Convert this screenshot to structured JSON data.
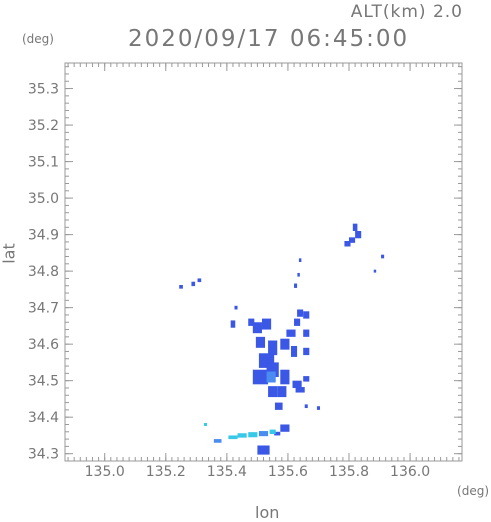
{
  "header": {
    "altitude_label": "ALT(km) 2.0",
    "timestamp": "2020/09/17 06:45:00"
  },
  "chart_data": {
    "type": "heatmap",
    "title": "2020/09/17 06:45:00",
    "subtitle": "ALT(km) 2.0",
    "xlabel": "lon",
    "ylabel": "lat",
    "x_unit": "(deg)",
    "y_unit": "(deg)",
    "xlim": [
      134.87,
      136.17
    ],
    "ylim": [
      34.28,
      35.37
    ],
    "x_ticks": [
      "135.0",
      "135.2",
      "135.4",
      "135.6",
      "135.8",
      "136.0"
    ],
    "y_ticks": [
      "34.3",
      "34.4",
      "34.5",
      "34.6",
      "34.7",
      "34.8",
      "34.9",
      "35.0",
      "35.1",
      "35.2",
      "35.3"
    ],
    "grid": false,
    "colors": {
      "blue": "#3a57e6",
      "light_blue": "#4a8cf0",
      "cyan": "#38c8e8",
      "axis": "#999999"
    },
    "cells": [
      {
        "lon": 135.82,
        "lat": 34.92,
        "w": 0.015,
        "h": 0.02,
        "c": "blue"
      },
      {
        "lon": 135.83,
        "lat": 34.9,
        "w": 0.02,
        "h": 0.02,
        "c": "blue"
      },
      {
        "lon": 135.81,
        "lat": 34.885,
        "w": 0.02,
        "h": 0.015,
        "c": "blue"
      },
      {
        "lon": 135.795,
        "lat": 34.875,
        "w": 0.02,
        "h": 0.015,
        "c": "blue"
      },
      {
        "lon": 135.91,
        "lat": 34.84,
        "w": 0.01,
        "h": 0.01,
        "c": "blue"
      },
      {
        "lon": 135.885,
        "lat": 34.8,
        "w": 0.008,
        "h": 0.008,
        "c": "blue"
      },
      {
        "lon": 135.64,
        "lat": 34.83,
        "w": 0.008,
        "h": 0.01,
        "c": "blue"
      },
      {
        "lon": 135.635,
        "lat": 34.79,
        "w": 0.008,
        "h": 0.01,
        "c": "blue"
      },
      {
        "lon": 135.625,
        "lat": 34.76,
        "w": 0.01,
        "h": 0.012,
        "c": "blue"
      },
      {
        "lon": 135.29,
        "lat": 34.765,
        "w": 0.012,
        "h": 0.012,
        "c": "blue"
      },
      {
        "lon": 135.31,
        "lat": 34.775,
        "w": 0.012,
        "h": 0.01,
        "c": "blue"
      },
      {
        "lon": 135.25,
        "lat": 34.757,
        "w": 0.012,
        "h": 0.01,
        "c": "blue"
      },
      {
        "lon": 135.43,
        "lat": 34.7,
        "w": 0.01,
        "h": 0.01,
        "c": "blue"
      },
      {
        "lon": 135.42,
        "lat": 34.655,
        "w": 0.015,
        "h": 0.02,
        "c": "blue"
      },
      {
        "lon": 135.48,
        "lat": 34.66,
        "w": 0.02,
        "h": 0.02,
        "c": "blue"
      },
      {
        "lon": 135.5,
        "lat": 34.645,
        "w": 0.03,
        "h": 0.03,
        "c": "blue"
      },
      {
        "lon": 135.53,
        "lat": 34.655,
        "w": 0.03,
        "h": 0.03,
        "c": "blue"
      },
      {
        "lon": 135.51,
        "lat": 34.605,
        "w": 0.03,
        "h": 0.03,
        "c": "blue"
      },
      {
        "lon": 135.55,
        "lat": 34.59,
        "w": 0.03,
        "h": 0.04,
        "c": "blue"
      },
      {
        "lon": 135.59,
        "lat": 34.6,
        "w": 0.03,
        "h": 0.03,
        "c": "blue"
      },
      {
        "lon": 135.62,
        "lat": 34.58,
        "w": 0.02,
        "h": 0.03,
        "c": "blue"
      },
      {
        "lon": 135.61,
        "lat": 34.63,
        "w": 0.03,
        "h": 0.02,
        "c": "blue"
      },
      {
        "lon": 135.63,
        "lat": 34.66,
        "w": 0.02,
        "h": 0.02,
        "c": "blue"
      },
      {
        "lon": 135.64,
        "lat": 34.685,
        "w": 0.02,
        "h": 0.02,
        "c": "blue"
      },
      {
        "lon": 135.66,
        "lat": 34.68,
        "w": 0.02,
        "h": 0.02,
        "c": "blue"
      },
      {
        "lon": 135.66,
        "lat": 34.63,
        "w": 0.02,
        "h": 0.02,
        "c": "blue"
      },
      {
        "lon": 135.66,
        "lat": 34.58,
        "w": 0.02,
        "h": 0.02,
        "c": "blue"
      },
      {
        "lon": 135.53,
        "lat": 34.555,
        "w": 0.05,
        "h": 0.04,
        "c": "blue"
      },
      {
        "lon": 135.55,
        "lat": 34.53,
        "w": 0.04,
        "h": 0.04,
        "c": "blue"
      },
      {
        "lon": 135.51,
        "lat": 34.51,
        "w": 0.05,
        "h": 0.04,
        "c": "blue"
      },
      {
        "lon": 135.545,
        "lat": 34.51,
        "w": 0.03,
        "h": 0.03,
        "c": "light_blue"
      },
      {
        "lon": 135.59,
        "lat": 34.51,
        "w": 0.03,
        "h": 0.04,
        "c": "blue"
      },
      {
        "lon": 135.58,
        "lat": 34.47,
        "w": 0.03,
        "h": 0.03,
        "c": "blue"
      },
      {
        "lon": 135.55,
        "lat": 34.47,
        "w": 0.03,
        "h": 0.03,
        "c": "blue"
      },
      {
        "lon": 135.63,
        "lat": 34.49,
        "w": 0.03,
        "h": 0.02,
        "c": "blue"
      },
      {
        "lon": 135.66,
        "lat": 34.505,
        "w": 0.02,
        "h": 0.015,
        "c": "blue"
      },
      {
        "lon": 135.64,
        "lat": 34.475,
        "w": 0.03,
        "h": 0.015,
        "c": "blue"
      },
      {
        "lon": 135.57,
        "lat": 34.43,
        "w": 0.025,
        "h": 0.02,
        "c": "blue"
      },
      {
        "lon": 135.66,
        "lat": 34.43,
        "w": 0.01,
        "h": 0.01,
        "c": "blue"
      },
      {
        "lon": 135.7,
        "lat": 34.425,
        "w": 0.01,
        "h": 0.01,
        "c": "blue"
      },
      {
        "lon": 135.59,
        "lat": 34.37,
        "w": 0.03,
        "h": 0.02,
        "c": "blue"
      },
      {
        "lon": 135.565,
        "lat": 34.355,
        "w": 0.02,
        "h": 0.01,
        "c": "blue"
      },
      {
        "lon": 135.52,
        "lat": 34.31,
        "w": 0.04,
        "h": 0.025,
        "c": "blue"
      },
      {
        "lon": 135.42,
        "lat": 34.345,
        "w": 0.03,
        "h": 0.01,
        "c": "cyan"
      },
      {
        "lon": 135.45,
        "lat": 34.35,
        "w": 0.03,
        "h": 0.012,
        "c": "cyan"
      },
      {
        "lon": 135.485,
        "lat": 34.352,
        "w": 0.03,
        "h": 0.014,
        "c": "cyan"
      },
      {
        "lon": 135.52,
        "lat": 34.355,
        "w": 0.03,
        "h": 0.014,
        "c": "light_blue"
      },
      {
        "lon": 135.55,
        "lat": 34.36,
        "w": 0.02,
        "h": 0.012,
        "c": "cyan"
      },
      {
        "lon": 135.37,
        "lat": 34.335,
        "w": 0.025,
        "h": 0.01,
        "c": "light_blue"
      },
      {
        "lon": 135.33,
        "lat": 34.38,
        "w": 0.01,
        "h": 0.008,
        "c": "cyan"
      }
    ]
  }
}
